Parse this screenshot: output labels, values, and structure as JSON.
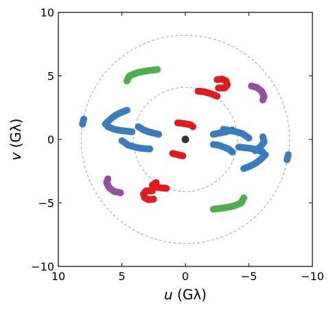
{
  "chart_data": {
    "type": "scatter",
    "xlabel_var": "u",
    "xlabel_unit": "(Gλ)",
    "ylabel_var": "v",
    "ylabel_unit": "(Gλ)",
    "xlim": [
      10,
      -10
    ],
    "ylim": [
      -10,
      10
    ],
    "x_ticks": [
      10,
      5,
      0,
      -5,
      -10
    ],
    "x_tick_labels": [
      "10",
      "5",
      "0",
      "−5",
      "−10"
    ],
    "y_ticks": [
      10,
      5,
      0,
      -5,
      -10
    ],
    "y_tick_labels": [
      "10",
      "5",
      "0",
      "−5",
      "−10"
    ],
    "grid": false,
    "reference_circles_radius": [
      4.1,
      8.2
    ],
    "center_point": {
      "x": 0,
      "y": 0,
      "color": "#333333"
    },
    "series_colors": {
      "blue": "#3a7dbf",
      "green": "#4daf4a",
      "red": "#e41a1c",
      "purple": "#984ea3"
    },
    "tracks": [
      {
        "color": "blue",
        "points": [
          [
            8.1,
            1.2
          ],
          [
            8.05,
            1.4
          ],
          [
            8.0,
            1.6
          ]
        ]
      },
      {
        "color": "blue",
        "points": [
          [
            -8.1,
            -1.2
          ],
          [
            -8.05,
            -1.4
          ],
          [
            -8.0,
            -1.6
          ]
        ]
      },
      {
        "color": "blue",
        "points": [
          [
            6.3,
            1.2
          ],
          [
            5.9,
            1.6
          ],
          [
            5.5,
            1.9
          ],
          [
            5.1,
            2.1
          ],
          [
            4.6,
            2.3
          ]
        ]
      },
      {
        "color": "blue",
        "points": [
          [
            -6.3,
            -1.2
          ],
          [
            -5.9,
            -1.6
          ],
          [
            -5.5,
            -1.9
          ],
          [
            -5.1,
            -2.1
          ],
          [
            -4.6,
            -2.3
          ]
        ]
      },
      {
        "color": "blue",
        "points": [
          [
            6.1,
            1.0
          ],
          [
            5.6,
            0.8
          ],
          [
            5.1,
            0.7
          ],
          [
            4.6,
            0.65
          ],
          [
            4.2,
            0.6
          ]
        ]
      },
      {
        "color": "blue",
        "points": [
          [
            -6.1,
            -1.0
          ],
          [
            -5.6,
            -0.8
          ],
          [
            -5.1,
            -0.7
          ],
          [
            -4.6,
            -0.65
          ],
          [
            -4.2,
            -0.6
          ]
        ]
      },
      {
        "color": "blue",
        "points": [
          [
            5.0,
            -0.1
          ],
          [
            4.5,
            -0.45
          ],
          [
            4.0,
            -0.6
          ],
          [
            3.5,
            -0.7
          ],
          [
            2.8,
            -0.75
          ]
        ]
      },
      {
        "color": "blue",
        "points": [
          [
            -2.2,
            0.4
          ],
          [
            -2.7,
            0.5
          ],
          [
            -3.2,
            0.6
          ],
          [
            -3.7,
            0.75
          ]
        ]
      },
      {
        "color": "blue",
        "points": [
          [
            3.7,
            1.0
          ],
          [
            3.3,
            0.75
          ],
          [
            2.9,
            0.6
          ],
          [
            2.5,
            0.5
          ],
          [
            2.1,
            0.4
          ]
        ]
      },
      {
        "color": "blue",
        "points": [
          [
            -2.2,
            -0.4
          ],
          [
            -2.6,
            -0.45
          ],
          [
            -3.0,
            -0.6
          ],
          [
            -3.4,
            -0.75
          ],
          [
            -3.7,
            -1.0
          ]
        ]
      },
      {
        "color": "blue",
        "points": [
          [
            -3.0,
            0.8
          ],
          [
            -3.5,
            0.7
          ],
          [
            -4.0,
            0.6
          ],
          [
            -4.5,
            0.45
          ],
          [
            -5.0,
            0.1
          ]
        ]
      },
      {
        "color": "blue",
        "points": [
          [
            -5.5,
            -0.9
          ],
          [
            -5.9,
            -0.6
          ],
          [
            -6.2,
            -0.2
          ],
          [
            -6.1,
            0.2
          ]
        ]
      },
      {
        "color": "green",
        "points": [
          [
            4.6,
            4.6
          ],
          [
            4.4,
            5.0
          ],
          [
            3.8,
            5.25
          ],
          [
            3.0,
            5.4
          ],
          [
            2.2,
            5.5
          ]
        ]
      },
      {
        "color": "green",
        "points": [
          [
            -2.2,
            -5.5
          ],
          [
            -3.0,
            -5.4
          ],
          [
            -3.8,
            -5.25
          ],
          [
            -4.4,
            -5.0
          ],
          [
            -4.6,
            -4.6
          ]
        ]
      },
      {
        "color": "red",
        "points": [
          [
            0.6,
            1.3
          ],
          [
            0.1,
            1.25
          ],
          [
            -0.4,
            1.15
          ],
          [
            -0.6,
            1.0
          ]
        ]
      },
      {
        "color": "red",
        "points": [
          [
            1.0,
            -1.1
          ],
          [
            0.6,
            -1.2
          ],
          [
            0.2,
            -1.3
          ]
        ]
      },
      {
        "color": "red",
        "points": [
          [
            -1.0,
            3.8
          ],
          [
            -1.5,
            3.75
          ],
          [
            -2.0,
            3.6
          ],
          [
            -2.5,
            3.4
          ]
        ]
      },
      {
        "color": "red",
        "points": [
          [
            2.3,
            -3.4
          ],
          [
            2.6,
            -3.6
          ],
          [
            2.1,
            -3.8
          ],
          [
            1.5,
            -3.85
          ]
        ]
      },
      {
        "color": "red",
        "points": [
          [
            -2.5,
            4.7
          ],
          [
            -2.9,
            4.75
          ],
          [
            -3.2,
            4.6
          ],
          [
            -3.3,
            4.3
          ],
          [
            -3.1,
            4.05
          ],
          [
            -2.6,
            4.05
          ]
        ]
      },
      {
        "color": "red",
        "points": [
          [
            2.5,
            -4.7
          ],
          [
            2.9,
            -4.75
          ],
          [
            3.2,
            -4.6
          ],
          [
            3.3,
            -4.3
          ],
          [
            3.1,
            -4.05
          ],
          [
            2.6,
            -4.05
          ]
        ]
      },
      {
        "color": "purple",
        "points": [
          [
            -5.2,
            4.2
          ],
          [
            -5.6,
            4.1
          ],
          [
            -6.0,
            3.8
          ],
          [
            -6.2,
            3.4
          ],
          [
            -6.1,
            3.1
          ]
        ]
      },
      {
        "color": "purple",
        "points": [
          [
            5.1,
            -4.2
          ],
          [
            5.6,
            -4.1
          ],
          [
            6.0,
            -3.8
          ],
          [
            6.2,
            -3.4
          ],
          [
            6.1,
            -3.1
          ]
        ]
      }
    ]
  }
}
